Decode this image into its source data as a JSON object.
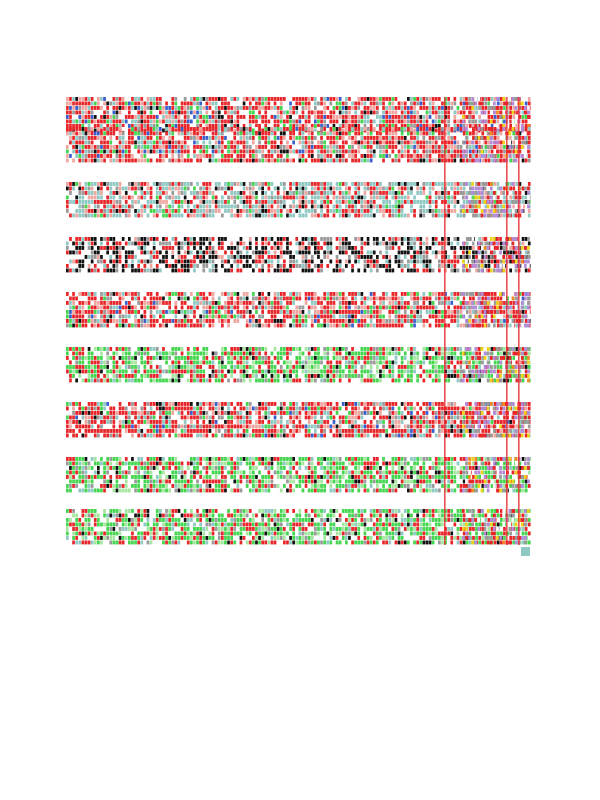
{
  "figure": {
    "block_count": 9,
    "palette": {
      "red": "#e8262a",
      "light_red": "#f0a6a0",
      "green": "#43d64e",
      "light_green": "#a6e6a0",
      "teal": "#8fc9c4",
      "blue": "#3a5fcd",
      "purple": "#b58ad9",
      "yellow": "#f2d21b",
      "orange": "#f08a24",
      "black": "#111111",
      "gray": "#9a9a9a",
      "white": "#ffffff"
    },
    "block_tones": [
      "red",
      "red",
      "teal",
      "black",
      "red",
      "green",
      "red",
      "green",
      "green"
    ]
  }
}
